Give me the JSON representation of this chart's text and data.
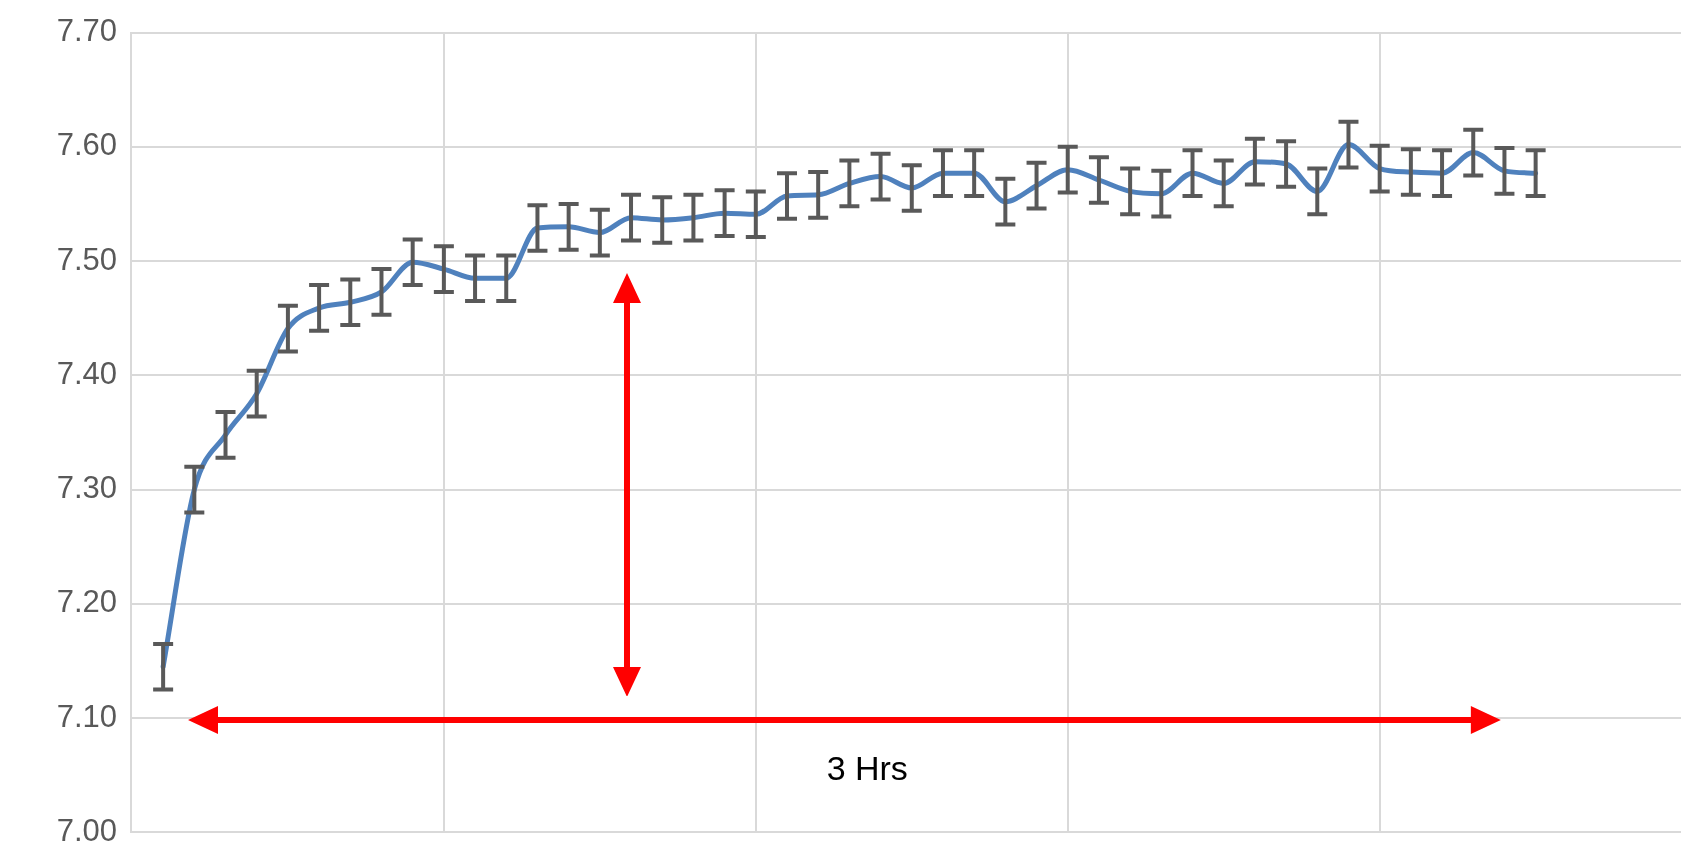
{
  "chart_data": {
    "type": "line",
    "categories": [
      null,
      null,
      null,
      null,
      null,
      null,
      null,
      null,
      null,
      null,
      null,
      null,
      null,
      null,
      null,
      null,
      null,
      null,
      null,
      null,
      null,
      null,
      null,
      null,
      null,
      null,
      null,
      null,
      null,
      null,
      null,
      null,
      null,
      null,
      null,
      null,
      null,
      null,
      null,
      null,
      null,
      null,
      null,
      null,
      null
    ],
    "series": [
      {
        "color": "#4f81bd",
        "values": [
          7.145,
          7.3,
          7.348,
          7.384,
          7.441,
          7.459,
          7.464,
          7.473,
          7.499,
          7.493,
          7.485,
          7.485,
          7.529,
          7.53,
          7.525,
          7.538,
          7.536,
          7.538,
          7.542,
          7.541,
          7.557,
          7.558,
          7.568,
          7.574,
          7.564,
          7.577,
          7.577,
          7.552,
          7.566,
          7.58,
          7.571,
          7.561,
          7.559,
          7.577,
          7.568,
          7.587,
          7.585,
          7.561,
          7.602,
          7.581,
          7.578,
          7.577,
          7.595,
          7.579,
          7.577
        ],
        "errors": [
          0.02,
          0.02,
          0.02,
          0.02,
          0.02,
          0.02,
          0.02,
          0.02,
          0.02,
          0.02,
          0.02,
          0.02,
          0.02,
          0.02,
          0.02,
          0.02,
          0.02,
          0.02,
          0.02,
          0.02,
          0.02,
          0.02,
          0.02,
          0.02,
          0.02,
          0.02,
          0.02,
          0.02,
          0.02,
          0.02,
          0.02,
          0.02,
          0.02,
          0.02,
          0.02,
          0.02,
          0.02,
          0.02,
          0.02,
          0.02,
          0.02,
          0.02,
          0.02,
          0.02,
          0.02
        ]
      }
    ],
    "ylim": [
      7.0,
      7.7
    ],
    "yticks": [
      {
        "value": 7.0,
        "label": "7.00"
      },
      {
        "value": 7.1,
        "label": "7.10"
      },
      {
        "value": 7.2,
        "label": "7.20"
      },
      {
        "value": 7.3,
        "label": "7.30"
      },
      {
        "value": 7.4,
        "label": "7.40"
      },
      {
        "value": 7.5,
        "label": "7.50"
      },
      {
        "value": 7.6,
        "label": "7.60"
      },
      {
        "value": 7.7,
        "label": "7.70"
      }
    ],
    "tick_labels": "y",
    "grid": true,
    "legend": false,
    "marker": "none",
    "line_style": "solid",
    "annotations": [
      "3 Hrs"
    ]
  }
}
